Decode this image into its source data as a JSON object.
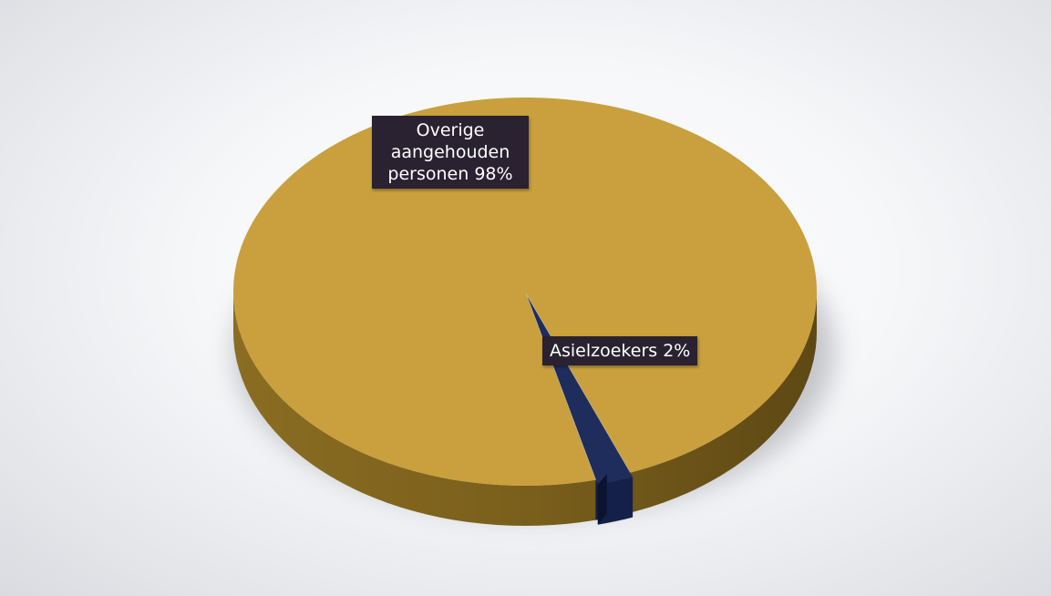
{
  "chart_data": {
    "type": "pie",
    "title": "",
    "slices": [
      {
        "label": "Overige aangehouden personen 98%",
        "value": 98,
        "color": "#c9a03d"
      },
      {
        "label": "Asielzoekers 2%",
        "value": 2,
        "color": "#1f2d5c"
      }
    ],
    "style": "3d",
    "legend": "none"
  }
}
